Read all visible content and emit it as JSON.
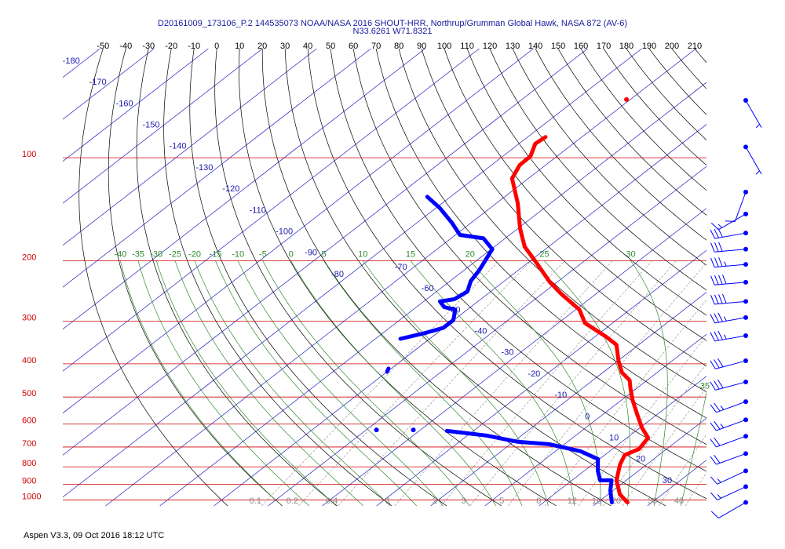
{
  "header": {
    "title": "D20161009_173106_P.2 144535073 NOAA/NASA 2016 SHOUT-HRR, Northrup/Grumman Global Hawk, NASA 872 (AV-6)",
    "subtitle": "N33.6261 W71.8321"
  },
  "footer": "Aspen V3.3, 09 Oct 2016  18:12 UTC",
  "chart_data": {
    "type": "skewt",
    "log_y": true,
    "ylim": [
      1040,
      48
    ],
    "xlim": [
      -77.9,
      40.9
    ],
    "yticks": [
      100,
      200,
      300,
      400,
      500,
      600,
      700,
      800,
      900,
      1000
    ],
    "isotherms": [
      -180,
      -170,
      -160,
      -150,
      -140,
      -130,
      -120,
      -110,
      -100,
      -90,
      -80,
      -70,
      -60,
      -50,
      -40,
      -30,
      -20,
      -10,
      0,
      10,
      20,
      30
    ],
    "dry_adiabats": [
      -50,
      -40,
      -30,
      -20,
      -10,
      0,
      10,
      20,
      30,
      40,
      50,
      60,
      70,
      80,
      90,
      100,
      110,
      120,
      130,
      140,
      150,
      160,
      170,
      180,
      190,
      200,
      210
    ],
    "moist_adiabats": [
      -40,
      -35,
      -30,
      -25,
      -20,
      -15,
      -10,
      -5,
      0,
      5,
      10,
      15,
      20,
      25,
      30,
      35
    ],
    "mixing_ratios": [
      0.1,
      0.2,
      0.4,
      1,
      2,
      3,
      5,
      8,
      12,
      16,
      20,
      30,
      40
    ],
    "series": [
      {
        "color": "#ff0000",
        "pressure": [
          1016,
          963,
          876,
          788,
          739,
          709,
          658,
          614,
          562,
          511,
          471,
          447,
          424,
          392,
          352,
          334,
          304,
          278,
          250,
          231,
          202,
          182,
          161,
          136,
          115,
          105,
          99,
          91,
          87
        ],
        "values": [
          25.5,
          22.2,
          18.2,
          15.1,
          13.7,
          14.9,
          13.9,
          10.3,
          6.3,
          2.1,
          -1.2,
          -3.2,
          -6.5,
          -9.9,
          -14.1,
          -17.8,
          -25.1,
          -29.3,
          -36.4,
          -41.3,
          -48.6,
          -54.4,
          -59.6,
          -66.0,
          -73.0,
          -74.8,
          -74.9,
          -77.0,
          -76.7
        ]
      },
      {
        "color": "#0000ff",
        "pressure": [
          1016,
          938,
          876,
          876,
          822,
          759,
          720,
          687,
          676,
          648,
          628,
          null,
          624,
          null,
          624,
          null,
          422,
          413,
          null,
          338,
          326,
          314,
          298,
          278,
          273,
          263,
          259,
          246,
          229,
          213,
          185,
          172,
          168,
          155,
          140,
          130
        ],
        "values": [
          22.6,
          19.5,
          17.3,
          15.2,
          12.5,
          9.7,
          4.6,
          -2.8,
          -9.2,
          -16.5,
          -24.9,
          null,
          -31.3,
          null,
          -38.1,
          null,
          -50.0,
          -50.5,
          null,
          -55.4,
          -52.4,
          -50.1,
          -50.1,
          -52.2,
          -54.9,
          -57.0,
          -54.9,
          -54.3,
          -56.2,
          -57.2,
          -59.8,
          -64.0,
          -69.2,
          -73.5,
          -79.4,
          -84.3
        ]
      },
      {
        "color": "#ff0000",
        "pressure": [
          67.6
        ],
        "values": [
          -70.7
        ]
      }
    ],
    "winds": {
      "color": "#0000ff",
      "pressure": [
        68,
        93,
        126,
        146,
        166,
        185,
        205,
        231,
        263,
        293,
        331,
        392,
        452,
        516,
        583,
        651,
        732,
        822,
        914,
        1016
      ],
      "speed": [
        5,
        5,
        10,
        15,
        30,
        30,
        35,
        40,
        40,
        35,
        35,
        30,
        30,
        25,
        25,
        20,
        20,
        15,
        15,
        10
      ],
      "direction": [
        150,
        150,
        200,
        240,
        260,
        265,
        265,
        265,
        265,
        260,
        260,
        255,
        255,
        250,
        250,
        250,
        250,
        245,
        245,
        240
      ]
    }
  }
}
